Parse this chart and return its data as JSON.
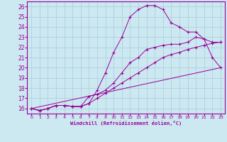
{
  "xlabel": "Windchill (Refroidissement éolien,°C)",
  "bg_color": "#cce8f0",
  "grid_color": "#aaccdd",
  "line_color": "#990099",
  "xlim": [
    -0.5,
    23.5
  ],
  "ylim": [
    15.5,
    26.5
  ],
  "xticks": [
    0,
    1,
    2,
    3,
    4,
    5,
    6,
    7,
    8,
    9,
    10,
    11,
    12,
    13,
    14,
    15,
    16,
    17,
    18,
    19,
    20,
    21,
    22,
    23
  ],
  "yticks": [
    16,
    17,
    18,
    19,
    20,
    21,
    22,
    23,
    24,
    25,
    26
  ],
  "curves": [
    {
      "x": [
        0,
        1,
        2,
        3,
        4,
        5,
        6,
        7,
        8,
        9,
        10,
        11,
        12,
        13,
        14,
        15,
        16,
        17,
        18,
        19,
        20,
        21,
        22,
        23
      ],
      "y": [
        16.0,
        15.8,
        16.0,
        16.3,
        16.3,
        16.2,
        16.2,
        16.5,
        17.8,
        19.5,
        21.5,
        23.0,
        25.0,
        25.7,
        26.1,
        26.1,
        25.7,
        24.4,
        24.0,
        23.5,
        23.5,
        22.8,
        21.0,
        20.0
      ]
    },
    {
      "x": [
        0,
        1,
        2,
        3,
        4,
        5,
        6,
        7,
        8,
        9,
        10,
        11,
        12,
        13,
        14,
        15,
        16,
        17,
        18,
        19,
        20,
        21,
        22,
        23
      ],
      "y": [
        16.0,
        15.8,
        16.0,
        16.3,
        16.3,
        16.2,
        16.2,
        17.2,
        17.4,
        17.8,
        18.5,
        19.5,
        20.5,
        21.0,
        21.8,
        22.0,
        22.2,
        22.3,
        22.3,
        22.5,
        23.0,
        22.8,
        22.5,
        22.5
      ]
    },
    {
      "x": [
        0,
        1,
        2,
        3,
        4,
        5,
        6,
        7,
        8,
        9,
        10,
        11,
        12,
        13,
        14,
        15,
        16,
        17,
        18,
        19,
        20,
        21,
        22,
        23
      ],
      "y": [
        16.0,
        15.8,
        16.0,
        16.3,
        16.3,
        16.2,
        16.2,
        16.5,
        17.0,
        17.5,
        18.0,
        18.5,
        19.0,
        19.5,
        20.0,
        20.5,
        21.0,
        21.3,
        21.5,
        21.8,
        22.0,
        22.2,
        22.4,
        22.5
      ]
    },
    {
      "x": [
        0,
        23
      ],
      "y": [
        16.0,
        20.0
      ]
    }
  ]
}
